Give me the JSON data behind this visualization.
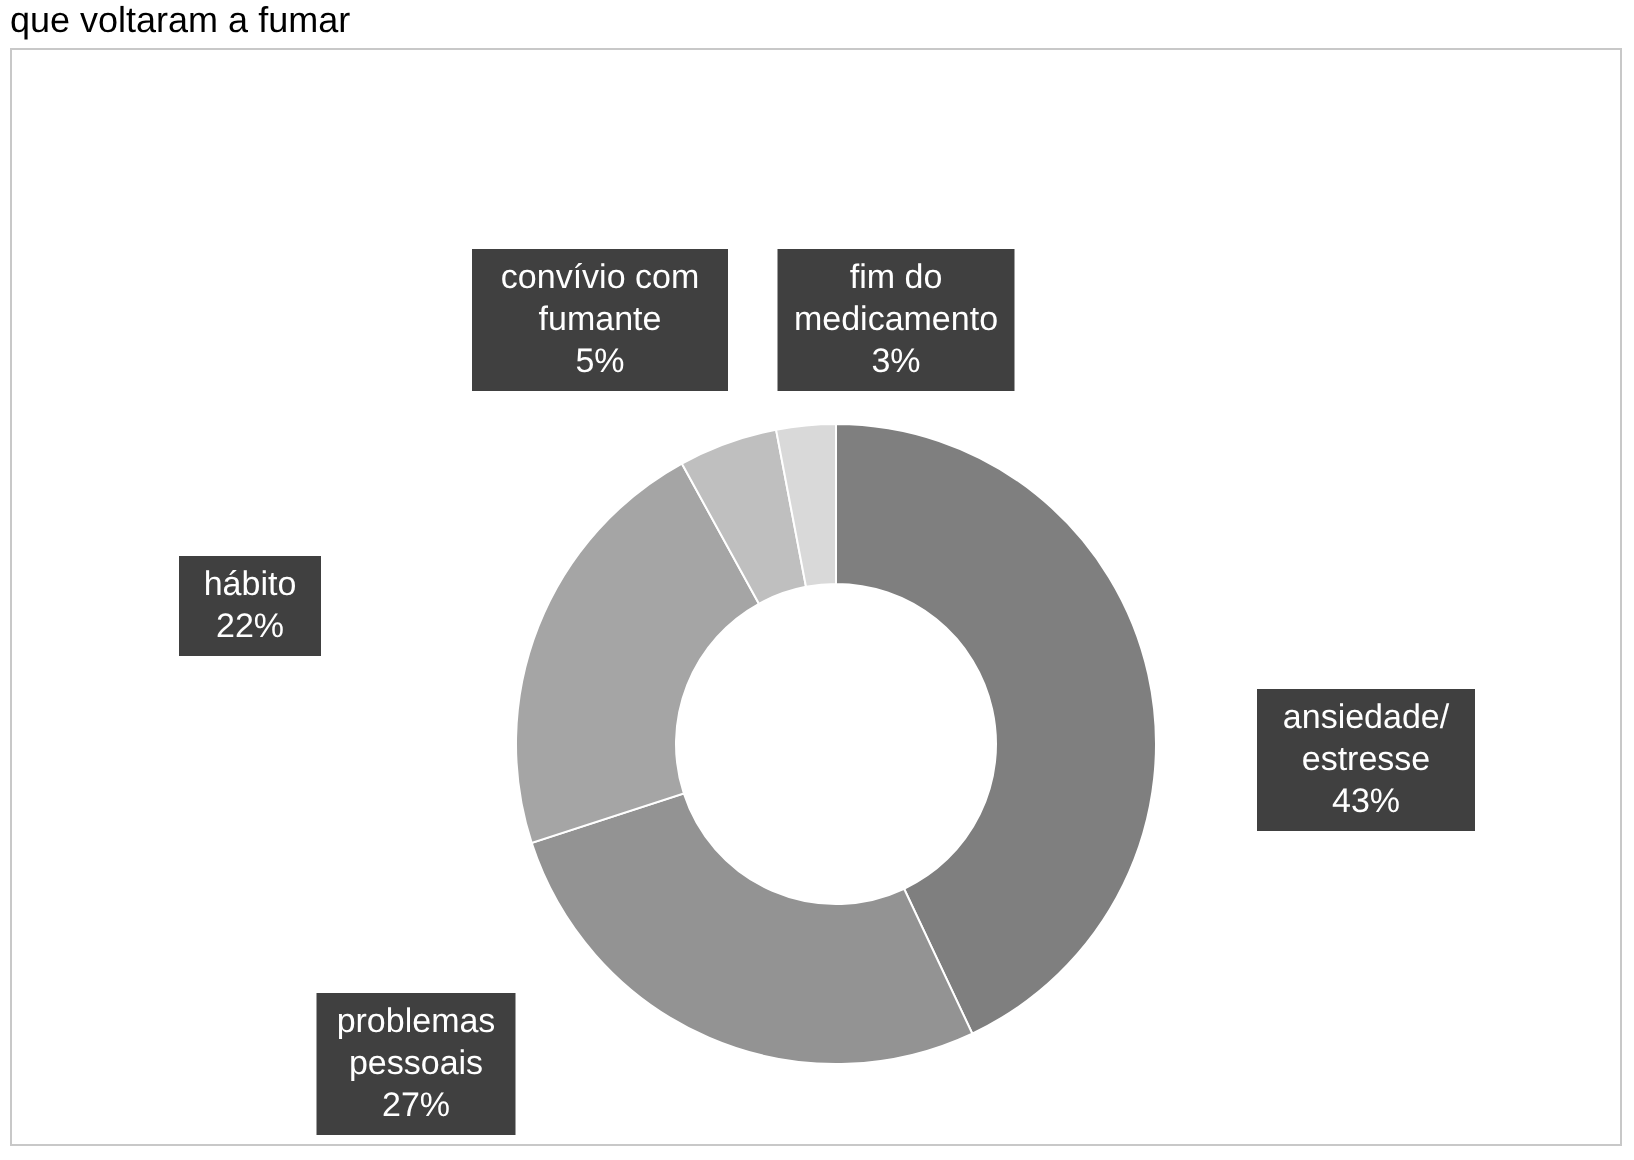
{
  "chart_data": {
    "type": "donut",
    "title": "que voltaram a fumar",
    "categories": [
      "ansiedade/estresse",
      "problemas pessoais",
      "hábito",
      "convívio com fumante",
      "fim do medicamento"
    ],
    "values": [
      43,
      27,
      22,
      5,
      3
    ],
    "value_labels": [
      "43%",
      "27%",
      "22%",
      "5%",
      "3%"
    ],
    "colors": [
      "#7f7f7f",
      "#939393",
      "#a5a5a5",
      "#bfbfbf",
      "#d9d9d9"
    ],
    "legend": false
  }
}
